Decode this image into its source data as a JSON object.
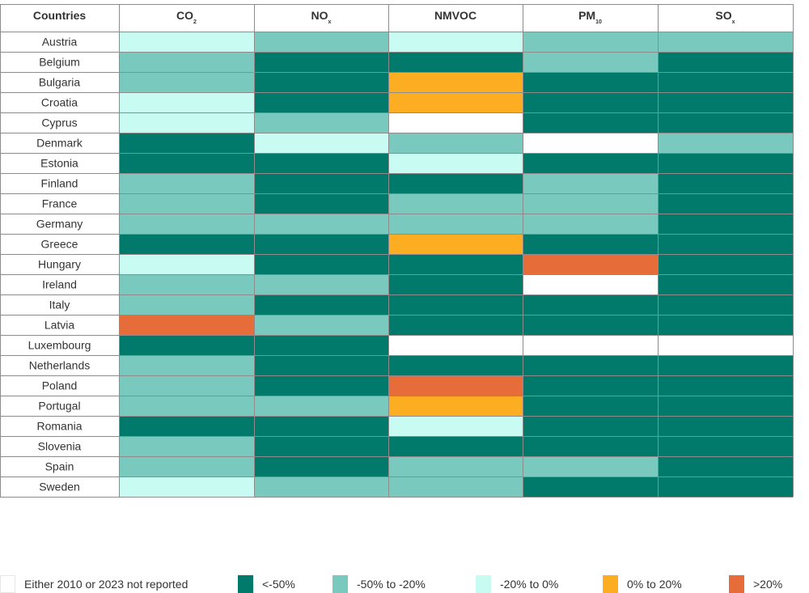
{
  "chart_data": {
    "type": "heatmap",
    "title": "",
    "header": {
      "row_label": "Countries",
      "columns": [
        {
          "main": "CO",
          "sub": "2"
        },
        {
          "main": "NO",
          "sub": "x"
        },
        {
          "main": "NMVOC",
          "sub": ""
        },
        {
          "main": "PM",
          "sub": "10"
        },
        {
          "main": "SO",
          "sub": "x"
        }
      ]
    },
    "rows": [
      "Austria",
      "Belgium",
      "Bulgaria",
      "Croatia",
      "Cyprus",
      "Denmark",
      "Estonia",
      "Finland",
      "France",
      "Germany",
      "Greece",
      "Hungary",
      "Ireland",
      "Italy",
      "Latvia",
      "Luxembourg",
      "Netherlands",
      "Poland",
      "Portugal",
      "Romania",
      "Slovenia",
      "Spain",
      "Sweden"
    ],
    "categories": [
      {
        "key": "na",
        "label": "Either 2010 or 2023 not reported",
        "color": "#ffffff"
      },
      {
        "key": "lt_-50",
        "label": "<-50%",
        "color": "#017a6b"
      },
      {
        "key": "-50_-20",
        "label": "-50% to -20%",
        "color": "#79c9be"
      },
      {
        "key": "-20_0",
        "label": "-20% to 0%",
        "color": "#c8fcf3"
      },
      {
        "key": "0_20",
        "label": "0% to 20%",
        "color": "#fdad22"
      },
      {
        "key": "gt_20",
        "label": ">20%",
        "color": "#e66c39"
      }
    ],
    "values": [
      [
        "-20_0",
        "-50_-20",
        "-20_0",
        "-50_-20",
        "-50_-20"
      ],
      [
        "-50_-20",
        "lt_-50",
        "lt_-50",
        "-50_-20",
        "lt_-50"
      ],
      [
        "-50_-20",
        "lt_-50",
        "0_20",
        "lt_-50",
        "lt_-50"
      ],
      [
        "-20_0",
        "lt_-50",
        "0_20",
        "lt_-50",
        "lt_-50"
      ],
      [
        "-20_0",
        "-50_-20",
        "na",
        "lt_-50",
        "lt_-50"
      ],
      [
        "lt_-50",
        "-20_0",
        "-50_-20",
        "na",
        "-50_-20"
      ],
      [
        "lt_-50",
        "lt_-50",
        "-20_0",
        "lt_-50",
        "lt_-50"
      ],
      [
        "-50_-20",
        "lt_-50",
        "lt_-50",
        "-50_-20",
        "lt_-50"
      ],
      [
        "-50_-20",
        "lt_-50",
        "-50_-20",
        "-50_-20",
        "lt_-50"
      ],
      [
        "-50_-20",
        "-50_-20",
        "-50_-20",
        "-50_-20",
        "lt_-50"
      ],
      [
        "lt_-50",
        "lt_-50",
        "0_20",
        "lt_-50",
        "lt_-50"
      ],
      [
        "-20_0",
        "lt_-50",
        "lt_-50",
        "gt_20",
        "lt_-50"
      ],
      [
        "-50_-20",
        "-50_-20",
        "lt_-50",
        "na",
        "lt_-50"
      ],
      [
        "-50_-20",
        "lt_-50",
        "lt_-50",
        "lt_-50",
        "lt_-50"
      ],
      [
        "gt_20",
        "-50_-20",
        "lt_-50",
        "lt_-50",
        "lt_-50"
      ],
      [
        "lt_-50",
        "lt_-50",
        "na",
        "na",
        "na"
      ],
      [
        "-50_-20",
        "lt_-50",
        "lt_-50",
        "lt_-50",
        "lt_-50"
      ],
      [
        "-50_-20",
        "lt_-50",
        "gt_20",
        "lt_-50",
        "lt_-50"
      ],
      [
        "-50_-20",
        "-50_-20",
        "0_20",
        "lt_-50",
        "lt_-50"
      ],
      [
        "lt_-50",
        "lt_-50",
        "-20_0",
        "lt_-50",
        "lt_-50"
      ],
      [
        "-50_-20",
        "lt_-50",
        "lt_-50",
        "lt_-50",
        "lt_-50"
      ],
      [
        "-50_-20",
        "lt_-50",
        "-50_-20",
        "-50_-20",
        "lt_-50"
      ],
      [
        "-20_0",
        "-50_-20",
        "-50_-20",
        "lt_-50",
        "lt_-50"
      ]
    ]
  }
}
